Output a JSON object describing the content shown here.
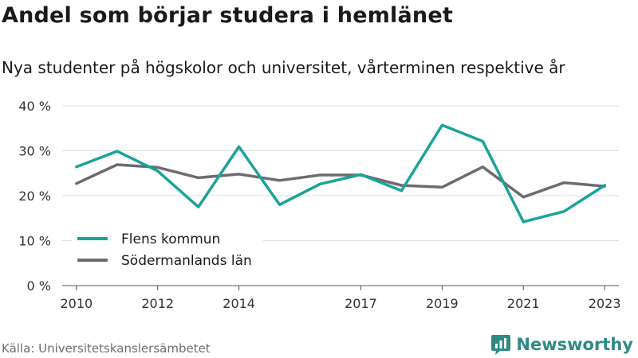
{
  "title": "Andel som börjar studera i hemlänet",
  "subtitle": "Nya studenter på högskolor och universitet, vårterminen respektive år",
  "source": "Källa: Universitetskanslersämbetet",
  "brand": {
    "name": "Newsworthy",
    "icon": "newsworthy-chart-logo-icon",
    "color": "#2f8a86"
  },
  "chart_data": {
    "type": "line",
    "x": [
      2010,
      2011,
      2012,
      2013,
      2014,
      2015,
      2016,
      2017,
      2018,
      2019,
      2020,
      2021,
      2022,
      2023
    ],
    "xticks": [
      2010,
      2012,
      2014,
      2017,
      2019,
      2021,
      2023
    ],
    "ylim": [
      0,
      40
    ],
    "yticks": [
      0,
      10,
      20,
      30,
      40
    ],
    "ytick_labels": [
      "0 %",
      "10 %",
      "20 %",
      "30 %",
      "40 %"
    ],
    "grid": true,
    "legend_position": "bottom-left",
    "series": [
      {
        "name": "Flens kommun",
        "color": "#1aa39a",
        "values": [
          26.4,
          29.9,
          25.5,
          17.5,
          30.9,
          18.0,
          22.6,
          24.7,
          21.1,
          35.7,
          32.1,
          14.2,
          16.5,
          22.3
        ]
      },
      {
        "name": "Södermanlands län",
        "color": "#6e6a72",
        "values": [
          22.7,
          26.9,
          26.3,
          24.0,
          24.8,
          23.4,
          24.6,
          24.6,
          22.3,
          21.9,
          26.4,
          19.7,
          22.9,
          22.1
        ]
      }
    ]
  }
}
